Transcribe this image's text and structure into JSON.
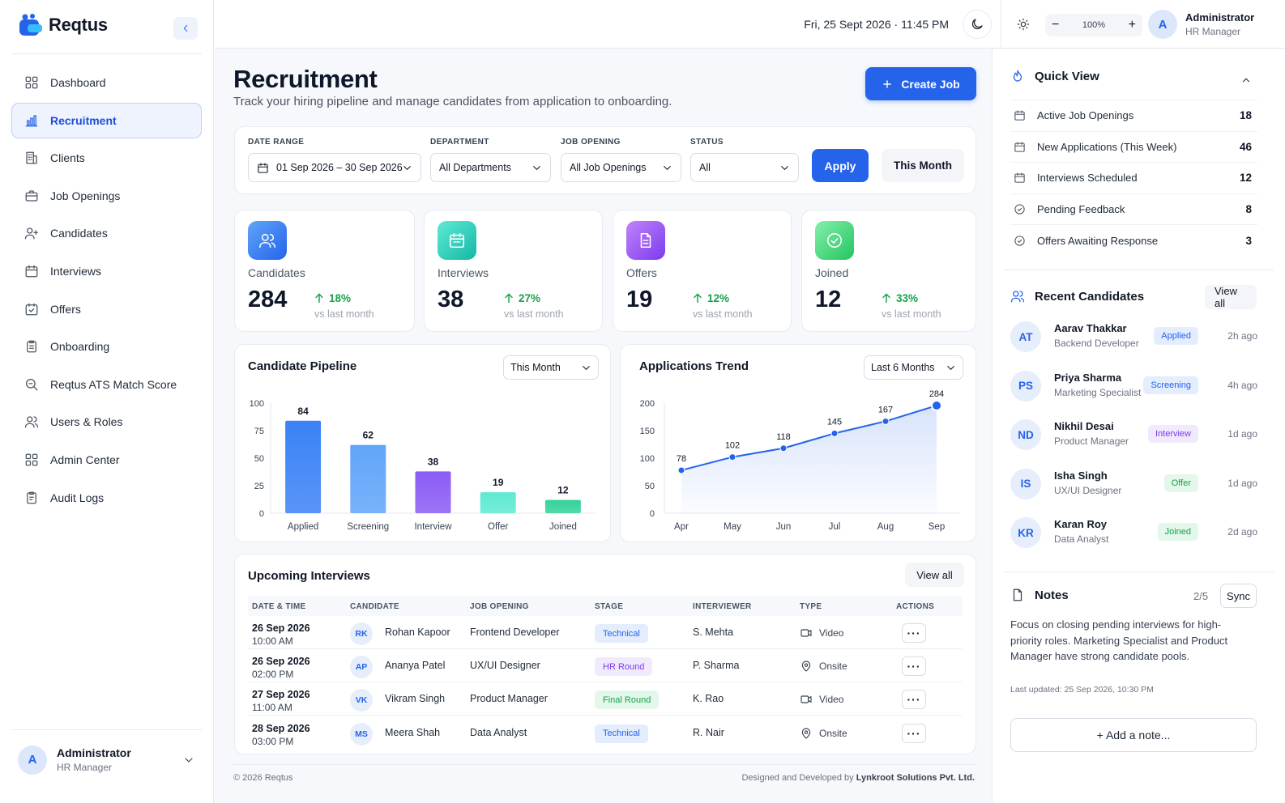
{
  "brand": {
    "name": "Reqtus"
  },
  "sidebar": {
    "items": [
      {
        "label": "Dashboard",
        "icon": "dashboard-icon"
      },
      {
        "label": "Recruitment",
        "icon": "bar-chart-icon",
        "active": true
      },
      {
        "label": "Clients",
        "icon": "building-icon"
      },
      {
        "label": "Job Openings",
        "icon": "briefcase-icon"
      },
      {
        "label": "Candidates",
        "icon": "user-plus-icon"
      },
      {
        "label": "Interviews",
        "icon": "calendar-icon"
      },
      {
        "label": "Offers",
        "icon": "check-calendar-icon"
      },
      {
        "label": "Onboarding",
        "icon": "clipboard-icon"
      },
      {
        "label": "Reqtus ATS Match Score",
        "icon": "search-icon"
      },
      {
        "label": "Users & Roles",
        "icon": "users-icon"
      },
      {
        "label": "Admin Center",
        "icon": "grid-icon"
      },
      {
        "label": "Audit Logs",
        "icon": "log-icon"
      }
    ],
    "user": {
      "initial": "A",
      "name": "Administrator",
      "role": "HR Manager"
    }
  },
  "topbar": {
    "datetime": "Fri, 25 Sept 2026 · 11:45 PM",
    "zoom": "100%",
    "user": {
      "initial": "A",
      "name": "Administrator",
      "role": "HR Manager"
    }
  },
  "header": {
    "title": "Recruitment",
    "subtitle": "Track your hiring pipeline and manage candidates from application to onboarding.",
    "create_label": "Create Job"
  },
  "filters": {
    "date_range": {
      "label": "DATE RANGE",
      "value": "01 Sep 2026 – 30 Sep 2026"
    },
    "department": {
      "label": "DEPARTMENT",
      "value": "All Departments"
    },
    "job_opening": {
      "label": "JOB OPENING",
      "value": "All Job Openings"
    },
    "status": {
      "label": "STATUS",
      "value": "All"
    },
    "apply_label": "Apply",
    "this_month_label": "This Month"
  },
  "stats": [
    {
      "label": "Candidates",
      "value": "284",
      "delta": "18%",
      "vs": "vs last month",
      "color": "#3b82f6",
      "icon": "users-icon"
    },
    {
      "label": "Interviews",
      "value": "38",
      "delta": "27%",
      "vs": "vs last month",
      "color": "#2dd4bf",
      "icon": "calendar-icon"
    },
    {
      "label": "Offers",
      "value": "19",
      "delta": "12%",
      "vs": "vs last month",
      "color": "#8b5cf6",
      "icon": "document-icon"
    },
    {
      "label": "Joined",
      "value": "12",
      "delta": "33%",
      "vs": "vs last month",
      "color": "#22c55e",
      "icon": "check-circle-icon"
    }
  ],
  "pipeline": {
    "title": "Candidate Pipeline",
    "period": "This Month"
  },
  "trend": {
    "title": "Applications Trend",
    "period": "Last 6 Months"
  },
  "chart_data": [
    {
      "type": "bar",
      "title": "Candidate Pipeline",
      "categories": [
        "Applied",
        "Screening",
        "Interview",
        "Offer",
        "Joined"
      ],
      "values": [
        84,
        62,
        38,
        19,
        12
      ],
      "colors": [
        "#3b82f6",
        "#60a5fa",
        "#8b5cf6",
        "#5eead4",
        "#34d399"
      ],
      "ylim": [
        0,
        100
      ],
      "yticks": [
        0,
        25,
        50,
        75,
        100
      ],
      "grid": false
    },
    {
      "type": "line",
      "title": "Applications Trend",
      "x": [
        "Apr",
        "May",
        "Jun",
        "Jul",
        "Aug",
        "Sep"
      ],
      "values": [
        78,
        102,
        118,
        145,
        167,
        284
      ],
      "ylim": [
        0,
        200
      ],
      "yticks": [
        0,
        50,
        100,
        150,
        200
      ],
      "grid": false,
      "color": "#2563eb"
    }
  ],
  "interviews": {
    "title": "Upcoming Interviews",
    "view_all": "View all",
    "columns": [
      "DATE & TIME",
      "CANDIDATE",
      "JOB OPENING",
      "STAGE",
      "INTERVIEWER",
      "TYPE",
      "ACTIONS"
    ],
    "rows": [
      {
        "date": "26 Sep 2026",
        "time": "10:00 AM",
        "initials": "RK",
        "candidate": "Rohan Kapoor",
        "job": "Frontend Developer",
        "stage": "Technical",
        "stage_color": "#2563eb",
        "stage_bg": "#e3edfd",
        "interviewer": "S. Mehta",
        "type": "Video",
        "type_icon": "video-icon",
        "more": "···"
      },
      {
        "date": "26 Sep 2026",
        "time": "02:00 PM",
        "initials": "AP",
        "candidate": "Ananya Patel",
        "job": "UX/UI Designer",
        "stage": "HR Round",
        "stage_color": "#7c3aed",
        "stage_bg": "#f1eafd",
        "interviewer": "P. Sharma",
        "type": "Onsite",
        "type_icon": "location-icon",
        "more": "···"
      },
      {
        "date": "27 Sep 2026",
        "time": "11:00 AM",
        "initials": "VK",
        "candidate": "Vikram Singh",
        "job": "Product Manager",
        "stage": "Final Round",
        "stage_color": "#16a34a",
        "stage_bg": "#e3f7ea",
        "interviewer": "K. Rao",
        "type": "Video",
        "type_icon": "video-icon",
        "more": "···"
      },
      {
        "date": "28 Sep 2026",
        "time": "03:00 PM",
        "initials": "MS",
        "candidate": "Meera Shah",
        "job": "Data Analyst",
        "stage": "Technical",
        "stage_color": "#2563eb",
        "stage_bg": "#e3edfd",
        "interviewer": "R. Nair",
        "type": "Onsite",
        "type_icon": "location-icon",
        "more": "···"
      }
    ]
  },
  "quick_view": {
    "title": "Quick View",
    "items": [
      {
        "label": "Active Job Openings",
        "count": "18"
      },
      {
        "label": "New Applications (This Week)",
        "count": "46"
      },
      {
        "label": "Interviews Scheduled",
        "count": "12"
      },
      {
        "label": "Pending Feedback",
        "count": "8"
      },
      {
        "label": "Offers Awaiting Response",
        "count": "3"
      }
    ]
  },
  "recent": {
    "title": "Recent Candidates",
    "view_all": "View all",
    "items": [
      {
        "initials": "AT",
        "name": "Aarav Thakkar",
        "role": "Backend Developer",
        "status": "Applied",
        "color": "#2563eb",
        "bg": "#e3edfd",
        "time": "2h ago"
      },
      {
        "initials": "PS",
        "name": "Priya Sharma",
        "role": "Marketing Specialist",
        "status": "Screening",
        "color": "#2563eb",
        "bg": "#e3edfd",
        "time": "4h ago"
      },
      {
        "initials": "ND",
        "name": "Nikhil Desai",
        "role": "Product Manager",
        "status": "Interview",
        "color": "#7c3aed",
        "bg": "#f1eafd",
        "time": "1d ago"
      },
      {
        "initials": "IS",
        "name": "Isha Singh",
        "role": "UX/UI Designer",
        "status": "Offer",
        "color": "#16a34a",
        "bg": "#e3f7ea",
        "time": "1d ago"
      },
      {
        "initials": "KR",
        "name": "Karan Roy",
        "role": "Data Analyst",
        "status": "Joined",
        "color": "#16a34a",
        "bg": "#e3f7ea",
        "time": "2d ago"
      }
    ]
  },
  "notes": {
    "title": "Notes",
    "count": "2/5",
    "sync": "Sync",
    "text": "Focus on closing pending interviews for high-priority roles. Marketing Specialist and Product Manager have strong candidate pools.",
    "updated": "Last updated: 25 Sep 2026, 10:30 PM",
    "add": "+ Add a note..."
  },
  "footer": {
    "copyright": "© 2026 Reqtus",
    "credit_prefix": "Designed and Developed by",
    "credit_company": "Lynkroot Solutions Pvt. Ltd."
  }
}
